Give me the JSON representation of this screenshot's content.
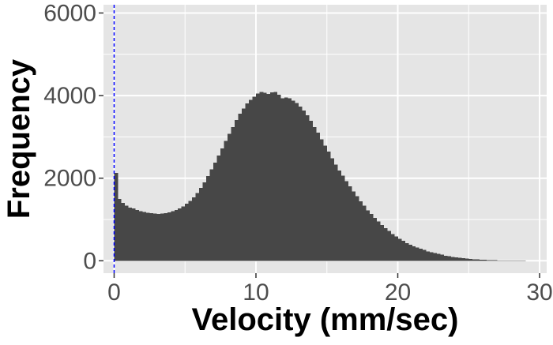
{
  "chart_data": {
    "type": "bar",
    "subtype": "histogram",
    "xlabel": "Velocity (mm/sec)",
    "ylabel": "Frequency",
    "xlim": [
      -0.75,
      30.5
    ],
    "ylim": [
      -300,
      6200
    ],
    "x_ticks": [
      0,
      10,
      20,
      30
    ],
    "y_ticks": [
      0,
      2000,
      4000,
      6000
    ],
    "x_tick_labels": [
      "0",
      "10",
      "20",
      "30"
    ],
    "y_tick_labels": [
      "0",
      "2000",
      "4000",
      "6000"
    ],
    "grid": true,
    "legend": "none",
    "bin_width": 0.25,
    "bin_start": 0,
    "reference_line": {
      "x": 0,
      "style": "dashed",
      "color": "#0000ff"
    },
    "bar_color": "#474747",
    "panel_color": "#e5e5e5",
    "grid_color": "#ffffff",
    "bin_counts": [
      2130,
      1500,
      1400,
      1330,
      1290,
      1270,
      1230,
      1200,
      1180,
      1160,
      1150,
      1140,
      1130,
      1140,
      1150,
      1170,
      1200,
      1230,
      1270,
      1320,
      1380,
      1450,
      1540,
      1640,
      1760,
      1900,
      2050,
      2210,
      2380,
      2550,
      2720,
      2900,
      3070,
      3240,
      3410,
      3560,
      3690,
      3810,
      3900,
      3970,
      4050,
      4090,
      4070,
      4040,
      4080,
      4090,
      4020,
      3930,
      3950,
      3930,
      3880,
      3820,
      3730,
      3640,
      3520,
      3390,
      3240,
      3100,
      2940,
      2790,
      2640,
      2480,
      2330,
      2190,
      2060,
      1930,
      1800,
      1680,
      1560,
      1440,
      1330,
      1220,
      1130,
      1040,
      950,
      870,
      790,
      720,
      650,
      590,
      530,
      480,
      430,
      390,
      350,
      320,
      290,
      260,
      230,
      210,
      190,
      165,
      145,
      125,
      110,
      95,
      82,
      70,
      60,
      50,
      42,
      35,
      30,
      25,
      21,
      17,
      14,
      11,
      9,
      7,
      5,
      4,
      3,
      3,
      2,
      2,
      1,
      1,
      1,
      1
    ]
  }
}
